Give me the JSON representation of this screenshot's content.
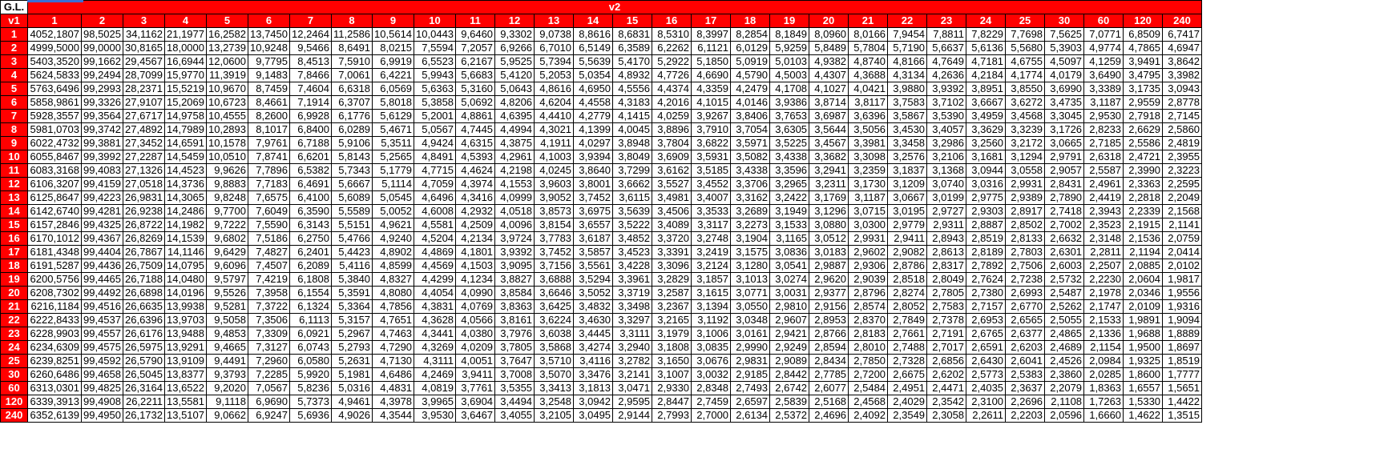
{
  "table": {
    "corner_label": "G.L.",
    "v1_label": "v1",
    "v2_label": "v2",
    "columns": [
      "1",
      "2",
      "3",
      "4",
      "5",
      "6",
      "7",
      "8",
      "9",
      "10",
      "11",
      "12",
      "13",
      "14",
      "15",
      "16",
      "17",
      "18",
      "19",
      "20",
      "21",
      "22",
      "23",
      "24",
      "25",
      "30",
      "60",
      "120",
      "240"
    ],
    "rows": [
      {
        "label": "1",
        "cells": [
          "4052,1807",
          "98,5025",
          "34,1162",
          "21,1977",
          "16,2582",
          "13,7450",
          "12,2464",
          "11,2586",
          "10,5614",
          "10,0443",
          "9,6460",
          "9,3302",
          "9,0738",
          "8,8616",
          "8,6831",
          "8,5310",
          "8,3997",
          "8,2854",
          "8,1849",
          "8,0960",
          "8,0166",
          "7,9454",
          "7,8811",
          "7,8229",
          "7,7698",
          "7,5625",
          "7,0771",
          "6,8509",
          "6,7417"
        ]
      },
      {
        "label": "2",
        "cells": [
          "4999,5000",
          "99,0000",
          "30,8165",
          "18,0000",
          "13,2739",
          "10,9248",
          "9,5466",
          "8,6491",
          "8,0215",
          "7,5594",
          "7,2057",
          "6,9266",
          "6,7010",
          "6,5149",
          "6,3589",
          "6,2262",
          "6,1121",
          "6,0129",
          "5,9259",
          "5,8489",
          "5,7804",
          "5,7190",
          "5,6637",
          "5,6136",
          "5,5680",
          "5,3903",
          "4,9774",
          "4,7865",
          "4,6947"
        ]
      },
      {
        "label": "3",
        "cells": [
          "5403,3520",
          "99,1662",
          "29,4567",
          "16,6944",
          "12,0600",
          "9,7795",
          "8,4513",
          "7,5910",
          "6,9919",
          "6,5523",
          "6,2167",
          "5,9525",
          "5,7394",
          "5,5639",
          "5,4170",
          "5,2922",
          "5,1850",
          "5,0919",
          "5,0103",
          "4,9382",
          "4,8740",
          "4,8166",
          "4,7649",
          "4,7181",
          "4,6755",
          "4,5097",
          "4,1259",
          "3,9491",
          "3,8642"
        ]
      },
      {
        "label": "4",
        "cells": [
          "5624,5833",
          "99,2494",
          "28,7099",
          "15,9770",
          "11,3919",
          "9,1483",
          "7,8466",
          "7,0061",
          "6,4221",
          "5,9943",
          "5,6683",
          "5,4120",
          "5,2053",
          "5,0354",
          "4,8932",
          "4,7726",
          "4,6690",
          "4,5790",
          "4,5003",
          "4,4307",
          "4,3688",
          "4,3134",
          "4,2636",
          "4,2184",
          "4,1774",
          "4,0179",
          "3,6490",
          "3,4795",
          "3,3982"
        ]
      },
      {
        "label": "5",
        "cells": [
          "5763,6496",
          "99,2993",
          "28,2371",
          "15,5219",
          "10,9670",
          "8,7459",
          "7,4604",
          "6,6318",
          "6,0569",
          "5,6363",
          "5,3160",
          "5,0643",
          "4,8616",
          "4,6950",
          "4,5556",
          "4,4374",
          "4,3359",
          "4,2479",
          "4,1708",
          "4,1027",
          "4,0421",
          "3,9880",
          "3,9392",
          "3,8951",
          "3,8550",
          "3,6990",
          "3,3389",
          "3,1735",
          "3,0943"
        ]
      },
      {
        "label": "6",
        "cells": [
          "5858,9861",
          "99,3326",
          "27,9107",
          "15,2069",
          "10,6723",
          "8,4661",
          "7,1914",
          "6,3707",
          "5,8018",
          "5,3858",
          "5,0692",
          "4,8206",
          "4,6204",
          "4,4558",
          "4,3183",
          "4,2016",
          "4,1015",
          "4,0146",
          "3,9386",
          "3,8714",
          "3,8117",
          "3,7583",
          "3,7102",
          "3,6667",
          "3,6272",
          "3,4735",
          "3,1187",
          "2,9559",
          "2,8778"
        ]
      },
      {
        "label": "7",
        "cells": [
          "5928,3557",
          "99,3564",
          "27,6717",
          "14,9758",
          "10,4555",
          "8,2600",
          "6,9928",
          "6,1776",
          "5,6129",
          "5,2001",
          "4,8861",
          "4,6395",
          "4,4410",
          "4,2779",
          "4,1415",
          "4,0259",
          "3,9267",
          "3,8406",
          "3,7653",
          "3,6987",
          "3,6396",
          "3,5867",
          "3,5390",
          "3,4959",
          "3,4568",
          "3,3045",
          "2,9530",
          "2,7918",
          "2,7145"
        ]
      },
      {
        "label": "8",
        "cells": [
          "5981,0703",
          "99,3742",
          "27,4892",
          "14,7989",
          "10,2893",
          "8,1017",
          "6,8400",
          "6,0289",
          "5,4671",
          "5,0567",
          "4,7445",
          "4,4994",
          "4,3021",
          "4,1399",
          "4,0045",
          "3,8896",
          "3,7910",
          "3,7054",
          "3,6305",
          "3,5644",
          "3,5056",
          "3,4530",
          "3,4057",
          "3,3629",
          "3,3239",
          "3,1726",
          "2,8233",
          "2,6629",
          "2,5860"
        ]
      },
      {
        "label": "9",
        "cells": [
          "6022,4732",
          "99,3881",
          "27,3452",
          "14,6591",
          "10,1578",
          "7,9761",
          "6,7188",
          "5,9106",
          "5,3511",
          "4,9424",
          "4,6315",
          "4,3875",
          "4,1911",
          "4,0297",
          "3,8948",
          "3,7804",
          "3,6822",
          "3,5971",
          "3,5225",
          "3,4567",
          "3,3981",
          "3,3458",
          "3,2986",
          "3,2560",
          "3,2172",
          "3,0665",
          "2,7185",
          "2,5586",
          "2,4819"
        ]
      },
      {
        "label": "10",
        "cells": [
          "6055,8467",
          "99,3992",
          "27,2287",
          "14,5459",
          "10,0510",
          "7,8741",
          "6,6201",
          "5,8143",
          "5,2565",
          "4,8491",
          "4,5393",
          "4,2961",
          "4,1003",
          "3,9394",
          "3,8049",
          "3,6909",
          "3,5931",
          "3,5082",
          "3,4338",
          "3,3682",
          "3,3098",
          "3,2576",
          "3,2106",
          "3,1681",
          "3,1294",
          "2,9791",
          "2,6318",
          "2,4721",
          "2,3955"
        ]
      },
      {
        "label": "11",
        "cells": [
          "6083,3168",
          "99,4083",
          "27,1326",
          "14,4523",
          "9,9626",
          "7,7896",
          "6,5382",
          "5,7343",
          "5,1779",
          "4,7715",
          "4,4624",
          "4,2198",
          "4,0245",
          "3,8640",
          "3,7299",
          "3,6162",
          "3,5185",
          "3,4338",
          "3,3596",
          "3,2941",
          "3,2359",
          "3,1837",
          "3,1368",
          "3,0944",
          "3,0558",
          "2,9057",
          "2,5587",
          "2,3990",
          "2,3223"
        ]
      },
      {
        "label": "12",
        "cells": [
          "6106,3207",
          "99,4159",
          "27,0518",
          "14,3736",
          "9,8883",
          "7,7183",
          "6,4691",
          "5,6667",
          "5,1114",
          "4,7059",
          "4,3974",
          "4,1553",
          "3,9603",
          "3,8001",
          "3,6662",
          "3,5527",
          "3,4552",
          "3,3706",
          "3,2965",
          "3,2311",
          "3,1730",
          "3,1209",
          "3,0740",
          "3,0316",
          "2,9931",
          "2,8431",
          "2,4961",
          "2,3363",
          "2,2595"
        ]
      },
      {
        "label": "13",
        "cells": [
          "6125,8647",
          "99,4223",
          "26,9831",
          "14,3065",
          "9,8248",
          "7,6575",
          "6,4100",
          "5,6089",
          "5,0545",
          "4,6496",
          "4,3416",
          "4,0999",
          "3,9052",
          "3,7452",
          "3,6115",
          "3,4981",
          "3,4007",
          "3,3162",
          "3,2422",
          "3,1769",
          "3,1187",
          "3,0667",
          "3,0199",
          "2,9775",
          "2,9389",
          "2,7890",
          "2,4419",
          "2,2818",
          "2,2049"
        ]
      },
      {
        "label": "14",
        "cells": [
          "6142,6740",
          "99,4281",
          "26,9238",
          "14,2486",
          "9,7700",
          "7,6049",
          "6,3590",
          "5,5589",
          "5,0052",
          "4,6008",
          "4,2932",
          "4,0518",
          "3,8573",
          "3,6975",
          "3,5639",
          "3,4506",
          "3,3533",
          "3,2689",
          "3,1949",
          "3,1296",
          "3,0715",
          "3,0195",
          "2,9727",
          "2,9303",
          "2,8917",
          "2,7418",
          "2,3943",
          "2,2339",
          "2,1568"
        ]
      },
      {
        "label": "15",
        "cells": [
          "6157,2846",
          "99,4325",
          "26,8722",
          "14,1982",
          "9,7222",
          "7,5590",
          "6,3143",
          "5,5151",
          "4,9621",
          "4,5581",
          "4,2509",
          "4,0096",
          "3,8154",
          "3,6557",
          "3,5222",
          "3,4089",
          "3,3117",
          "3,2273",
          "3,1533",
          "3,0880",
          "3,0300",
          "2,9779",
          "2,9311",
          "2,8887",
          "2,8502",
          "2,7002",
          "2,3523",
          "2,1915",
          "2,1141"
        ]
      },
      {
        "label": "16",
        "cells": [
          "6170,1012",
          "99,4367",
          "26,8269",
          "14,1539",
          "9,6802",
          "7,5186",
          "6,2750",
          "5,4766",
          "4,9240",
          "4,5204",
          "4,2134",
          "3,9724",
          "3,7783",
          "3,6187",
          "3,4852",
          "3,3720",
          "3,2748",
          "3,1904",
          "3,1165",
          "3,0512",
          "2,9931",
          "2,9411",
          "2,8943",
          "2,8519",
          "2,8133",
          "2,6632",
          "2,3148",
          "2,1536",
          "2,0759"
        ]
      },
      {
        "label": "17",
        "cells": [
          "6181,4348",
          "99,4404",
          "26,7867",
          "14,1146",
          "9,6429",
          "7,4827",
          "6,2401",
          "5,4423",
          "4,8902",
          "4,4869",
          "4,1801",
          "3,9392",
          "3,7452",
          "3,5857",
          "3,4523",
          "3,3391",
          "3,2419",
          "3,1575",
          "3,0836",
          "3,0183",
          "2,9602",
          "2,9082",
          "2,8613",
          "2,8189",
          "2,7803",
          "2,6301",
          "2,2811",
          "2,1194",
          "2,0414"
        ]
      },
      {
        "label": "18",
        "cells": [
          "6191,5287",
          "99,4436",
          "26,7509",
          "14,0795",
          "9,6096",
          "7,4507",
          "6,2089",
          "5,4116",
          "4,8599",
          "4,4569",
          "4,1503",
          "3,9095",
          "3,7156",
          "3,5561",
          "3,4228",
          "3,3096",
          "3,2124",
          "3,1280",
          "3,0541",
          "2,9887",
          "2,9306",
          "2,8786",
          "2,8317",
          "2,7892",
          "2,7506",
          "2,6003",
          "2,2507",
          "2,0885",
          "2,0102"
        ]
      },
      {
        "label": "19",
        "cells": [
          "6200,5756",
          "99,4465",
          "26,7188",
          "14,0480",
          "9,5797",
          "7,4219",
          "6,1808",
          "5,3840",
          "4,8327",
          "4,4299",
          "4,1234",
          "3,8827",
          "3,6888",
          "3,5294",
          "3,3961",
          "3,2829",
          "3,1857",
          "3,1013",
          "3,0274",
          "2,9620",
          "2,9039",
          "2,8518",
          "2,8049",
          "2,7624",
          "2,7238",
          "2,5732",
          "2,2230",
          "2,0604",
          "1,9817"
        ]
      },
      {
        "label": "20",
        "cells": [
          "6208,7302",
          "99,4492",
          "26,6898",
          "14,0196",
          "9,5526",
          "7,3958",
          "6,1554",
          "5,3591",
          "4,8080",
          "4,4054",
          "4,0990",
          "3,8584",
          "3,6646",
          "3,5052",
          "3,3719",
          "3,2587",
          "3,1615",
          "3,0771",
          "3,0031",
          "2,9377",
          "2,8796",
          "2,8274",
          "2,7805",
          "2,7380",
          "2,6993",
          "2,5487",
          "2,1978",
          "2,0346",
          "1,9556"
        ]
      },
      {
        "label": "21",
        "cells": [
          "6216,1184",
          "99,4516",
          "26,6635",
          "13,9938",
          "9,5281",
          "7,3722",
          "6,1324",
          "5,3364",
          "4,7856",
          "4,3831",
          "4,0769",
          "3,8363",
          "3,6425",
          "3,4832",
          "3,3498",
          "3,2367",
          "3,1394",
          "3,0550",
          "2,9810",
          "2,9156",
          "2,8574",
          "2,8052",
          "2,7583",
          "2,7157",
          "2,6770",
          "2,5262",
          "2,1747",
          "2,0109",
          "1,9316"
        ]
      },
      {
        "label": "22",
        "cells": [
          "6222,8433",
          "99,4537",
          "26,6396",
          "13,9703",
          "9,5058",
          "7,3506",
          "6,1113",
          "5,3157",
          "4,7651",
          "4,3628",
          "4,0566",
          "3,8161",
          "3,6224",
          "3,4630",
          "3,3297",
          "3,2165",
          "3,1192",
          "3,0348",
          "2,9607",
          "2,8953",
          "2,8370",
          "2,7849",
          "2,7378",
          "2,6953",
          "2,6565",
          "2,5055",
          "2,1533",
          "1,9891",
          "1,9094"
        ]
      },
      {
        "label": "23",
        "cells": [
          "6228,9903",
          "99,4557",
          "26,6176",
          "13,9488",
          "9,4853",
          "7,3309",
          "6,0921",
          "5,2967",
          "4,7463",
          "4,3441",
          "4,0380",
          "3,7976",
          "3,6038",
          "3,4445",
          "3,3111",
          "3,1979",
          "3,1006",
          "3,0161",
          "2,9421",
          "2,8766",
          "2,8183",
          "2,7661",
          "2,7191",
          "2,6765",
          "2,6377",
          "2,4865",
          "2,1336",
          "1,9688",
          "1,8889"
        ]
      },
      {
        "label": "24",
        "cells": [
          "6234,6309",
          "99,4575",
          "26,5975",
          "13,9291",
          "9,4665",
          "7,3127",
          "6,0743",
          "5,2793",
          "4,7290",
          "4,3269",
          "4,0209",
          "3,7805",
          "3,5868",
          "3,4274",
          "3,2940",
          "3,1808",
          "3,0835",
          "2,9990",
          "2,9249",
          "2,8594",
          "2,8010",
          "2,7488",
          "2,7017",
          "2,6591",
          "2,6203",
          "2,4689",
          "2,1154",
          "1,9500",
          "1,8697"
        ]
      },
      {
        "label": "25",
        "cells": [
          "6239,8251",
          "99,4592",
          "26,5790",
          "13,9109",
          "9,4491",
          "7,2960",
          "6,0580",
          "5,2631",
          "4,7130",
          "4,3111",
          "4,0051",
          "3,7647",
          "3,5710",
          "3,4116",
          "3,2782",
          "3,1650",
          "3,0676",
          "2,9831",
          "2,9089",
          "2,8434",
          "2,7850",
          "2,7328",
          "2,6856",
          "2,6430",
          "2,6041",
          "2,4526",
          "2,0984",
          "1,9325",
          "1,8519"
        ]
      },
      {
        "label": "30",
        "cells": [
          "6260,6486",
          "99,4658",
          "26,5045",
          "13,8377",
          "9,3793",
          "7,2285",
          "5,9920",
          "5,1981",
          "4,6486",
          "4,2469",
          "3,9411",
          "3,7008",
          "3,5070",
          "3,3476",
          "3,2141",
          "3,1007",
          "3,0032",
          "2,9185",
          "2,8442",
          "2,7785",
          "2,7200",
          "2,6675",
          "2,6202",
          "2,5773",
          "2,5383",
          "2,3860",
          "2,0285",
          "1,8600",
          "1,7777"
        ]
      },
      {
        "label": "60",
        "cells": [
          "6313,0301",
          "99,4825",
          "26,3164",
          "13,6522",
          "9,2020",
          "7,0567",
          "5,8236",
          "5,0316",
          "4,4831",
          "4,0819",
          "3,7761",
          "3,5355",
          "3,3413",
          "3,1813",
          "3,0471",
          "2,9330",
          "2,8348",
          "2,7493",
          "2,6742",
          "2,6077",
          "2,5484",
          "2,4951",
          "2,4471",
          "2,4035",
          "2,3637",
          "2,2079",
          "1,8363",
          "1,6557",
          "1,5651"
        ]
      },
      {
        "label": "120",
        "cells": [
          "6339,3913",
          "99,4908",
          "26,2211",
          "13,5581",
          "9,1118",
          "6,9690",
          "5,7373",
          "4,9461",
          "4,3978",
          "3,9965",
          "3,6904",
          "3,4494",
          "3,2548",
          "3,0942",
          "2,9595",
          "2,8447",
          "2,7459",
          "2,6597",
          "2,5839",
          "2,5168",
          "2,4568",
          "2,4029",
          "2,3542",
          "2,3100",
          "2,2696",
          "2,1108",
          "1,7263",
          "1,5330",
          "1,4422"
        ]
      },
      {
        "label": "240",
        "cells": [
          "6352,6139",
          "99,4950",
          "26,1732",
          "13,5107",
          "9,0662",
          "6,9247",
          "5,6936",
          "4,9026",
          "4,3544",
          "3,9530",
          "3,6467",
          "3,4055",
          "3,2105",
          "3,0495",
          "2,9144",
          "2,7993",
          "2,7000",
          "2,6134",
          "2,5372",
          "2,4696",
          "2,4092",
          "2,3549",
          "2,3058",
          "2,2611",
          "2,2203",
          "2,0596",
          "1,6660",
          "1,4622",
          "1,3515"
        ]
      }
    ]
  },
  "colors": {
    "header_bg": "#ff0000",
    "header_text": "#ffffff",
    "grid": "#000000",
    "selection": "#3b6fd6"
  }
}
